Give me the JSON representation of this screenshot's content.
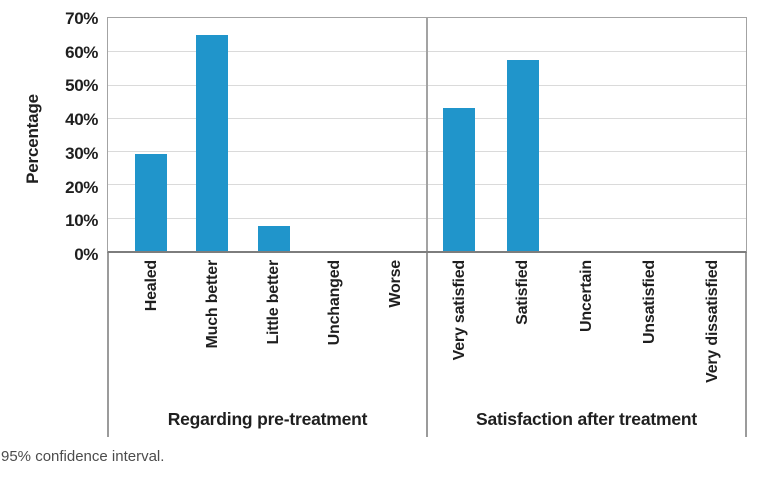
{
  "figure": {
    "caption": "95% confidence interval."
  },
  "chart_data": {
    "type": "bar",
    "title": "",
    "ylabel": "Percentage",
    "xlabel": "",
    "ylim": [
      0,
      70
    ],
    "ytick_step": 10,
    "yticks": [
      {
        "v": 0,
        "label": "0%"
      },
      {
        "v": 10,
        "label": "10%"
      },
      {
        "v": 20,
        "label": "20%"
      },
      {
        "v": 30,
        "label": "30%"
      },
      {
        "v": 40,
        "label": "40%"
      },
      {
        "v": 50,
        "label": "50%"
      },
      {
        "v": 60,
        "label": "60%"
      },
      {
        "v": 70,
        "label": "70%"
      }
    ],
    "gridlines": [
      10,
      20,
      30,
      40,
      50,
      60
    ],
    "grid": true,
    "legend": "none",
    "bar_color": "#2095cb",
    "groups": [
      {
        "label": "Regarding pre-treatment",
        "categories": [
          "Healed",
          "Much better",
          "Little better",
          "Unchanged",
          "Worse"
        ],
        "values": [
          29,
          65,
          7.5,
          0,
          0
        ]
      },
      {
        "label": "Satisfaction after treatment",
        "categories": [
          "Very satisfied",
          "Satisfied",
          "Uncertain",
          "Unsatisfied",
          "Very dissatisfied"
        ],
        "values": [
          43,
          57.5,
          0,
          0,
          0
        ]
      }
    ]
  }
}
